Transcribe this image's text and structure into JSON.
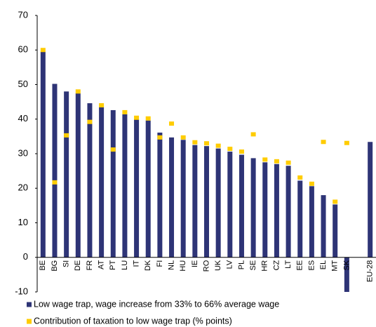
{
  "chart_data": {
    "type": "bar",
    "categories": [
      "BE",
      "BG",
      "SI",
      "DE",
      "FR",
      "AT",
      "PT",
      "LU",
      "IT",
      "DK",
      "FI",
      "NL",
      "HU",
      "IE",
      "RO",
      "UK",
      "LV",
      "PL",
      "SE",
      "HR",
      "CZ",
      "LT",
      "EE",
      "ES",
      "EL",
      "MT",
      "SK",
      null,
      "EU-28"
    ],
    "series": [
      {
        "name": "Low wage trap, wage increase from 33% to 66% average wage",
        "type": "bar",
        "color": "#2e3476",
        "values": [
          59.5,
          50.2,
          48,
          47.5,
          44.6,
          43.4,
          42.6,
          41.4,
          40,
          39.6,
          36.1,
          34.7,
          34,
          32.5,
          32.2,
          31.5,
          30.6,
          29.7,
          28.7,
          27.5,
          27,
          26.5,
          22.2,
          20.6,
          18,
          15.3,
          -10,
          null,
          33.4
        ]
      },
      {
        "name": "Contribution of taxation to low wage trap (% points)",
        "type": "scatter",
        "color": "#ffcc00",
        "values": [
          60,
          21.7,
          35.3,
          48,
          39.2,
          44,
          31.2,
          42,
          40.4,
          40.2,
          34.7,
          38.7,
          34.7,
          33.3,
          33,
          32.3,
          31.4,
          30.6,
          35.6,
          28.3,
          27.8,
          27.4,
          23.1,
          21.3,
          33.4,
          16.1,
          33.1,
          null,
          null
        ]
      }
    ],
    "ylim": [
      -10,
      70
    ],
    "yticks": [
      -10,
      0,
      10,
      20,
      30,
      40,
      50,
      60,
      70
    ],
    "legend": "bottom"
  }
}
